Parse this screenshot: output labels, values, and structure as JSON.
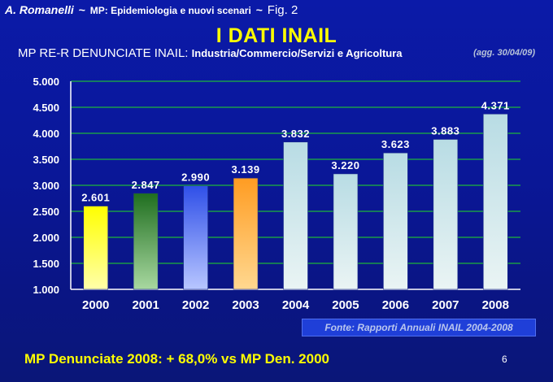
{
  "header": {
    "author": "A. Romanelli",
    "separator": "~",
    "course": "MP: Epidemiologia  e nuovi scenari",
    "figure": "Fig. 2"
  },
  "slide_title": "I DATI INAIL",
  "subtitle": {
    "prefix": "MP RE-R DENUNCIATE INAIL:",
    "sectors": "Industria/Commercio/Servizi e Agricoltura"
  },
  "update_note": "(agg. 30/04/09)",
  "source": "Fonte: Rapporti Annuali INAIL 2004-2008",
  "conclusion": "MP Denunciate 2008: + 68,0% vs MP Den. 2000",
  "page_number": "6",
  "chart_data": {
    "type": "bar",
    "categories": [
      "2000",
      "2001",
      "2002",
      "2003",
      "2004",
      "2005",
      "2006",
      "2007",
      "2008"
    ],
    "values": [
      2601,
      2847,
      2990,
      3139,
      3832,
      3220,
      3623,
      3883,
      4371
    ],
    "data_labels": [
      "2.601",
      "2.847",
      "2.990",
      "3.139",
      "3.832",
      "3.220",
      "3.623",
      "3.883",
      "4.371"
    ],
    "ylim": [
      1000,
      5000
    ],
    "yticks": [
      1000,
      1500,
      2000,
      2500,
      3000,
      3500,
      4000,
      4500,
      5000
    ],
    "ytick_labels": [
      "1.000",
      "1.500",
      "2.000",
      "2.500",
      "3.000",
      "3.500",
      "4.000",
      "4.500",
      "5.000"
    ],
    "grid": true,
    "bar_colors": [
      [
        "#ffffaa",
        "#ffff00"
      ],
      [
        "#a8d8a0",
        "#1f6e1f"
      ],
      [
        "#b8c6ff",
        "#2f4fe8"
      ],
      [
        "#ffd890",
        "#ff9c22"
      ],
      [
        "#eaf4f4",
        "#b8dce4"
      ],
      [
        "#eaf4f4",
        "#b8dce4"
      ],
      [
        "#eaf4f4",
        "#b8dce4"
      ],
      [
        "#eaf4f4",
        "#b8dce4"
      ],
      [
        "#eaf4f4",
        "#b8dce4"
      ]
    ],
    "gridline_color": "#22dd22",
    "tick_label_color": "#ffffff",
    "data_label_color": "#ffffff"
  }
}
